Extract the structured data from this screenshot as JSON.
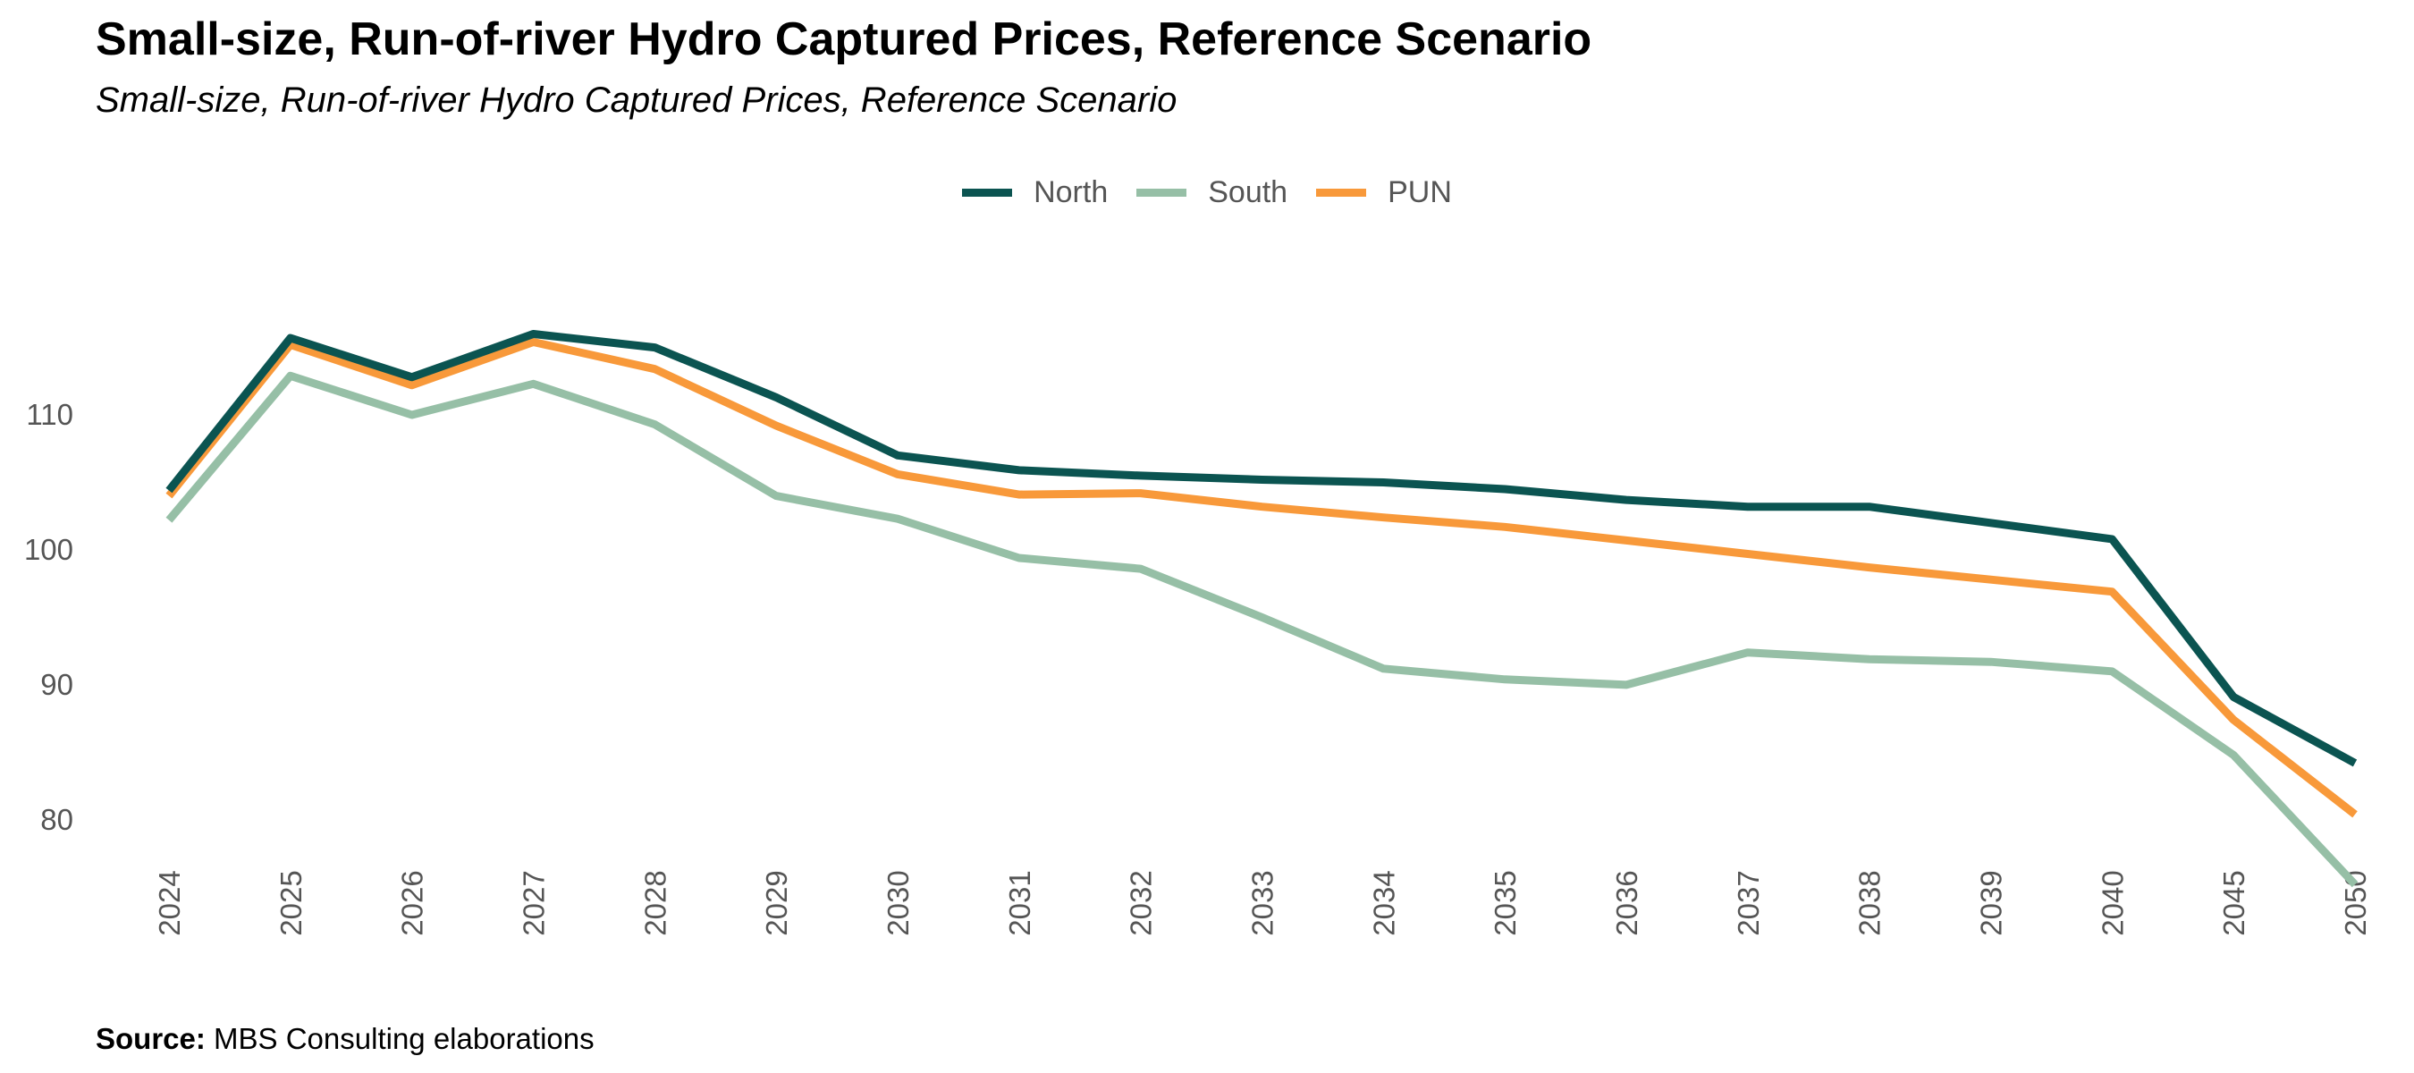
{
  "title": "Small-size, Run-of-river Hydro Captured Prices, Reference Scenario",
  "subtitle": "Small-size, Run-of-river Hydro Captured Prices, Reference Scenario",
  "source": {
    "label": "Source:",
    "text": " MBS Consulting elaborations"
  },
  "chart_data": {
    "type": "line",
    "title": "Small-size, Run-of-river Hydro Captured Prices, Reference Scenario",
    "subtitle": "Small-size, Run-of-river Hydro Captured Prices, Reference Scenario",
    "xlabel": "",
    "ylabel": "",
    "categories": [
      "2024",
      "2025",
      "2026",
      "2027",
      "2028",
      "2029",
      "2030",
      "2031",
      "2032",
      "2033",
      "2034",
      "2035",
      "2036",
      "2037",
      "2038",
      "2039",
      "2040",
      "2045",
      "2050"
    ],
    "yticks": [
      80,
      90,
      100,
      110
    ],
    "ylim": [
      72.5,
      121
    ],
    "grid": false,
    "legend": "top-center",
    "series": [
      {
        "name": "North",
        "color": "#0b5451",
        "values": [
          104.4,
          115.7,
          112.8,
          116.0,
          115.0,
          111.3,
          107.0,
          105.9,
          105.5,
          105.2,
          105.0,
          104.5,
          103.7,
          103.2,
          103.2,
          102.0,
          100.8,
          89.1,
          84.2
        ]
      },
      {
        "name": "South",
        "color": "#96bfa6",
        "values": [
          102.2,
          112.9,
          110.0,
          112.3,
          109.3,
          104.0,
          102.3,
          99.4,
          98.6,
          95.0,
          91.2,
          90.4,
          90.0,
          92.4,
          91.9,
          91.7,
          91.0,
          84.8,
          75.2
        ]
      },
      {
        "name": "PUN",
        "color": "#f8993a",
        "values": [
          104.0,
          115.2,
          112.2,
          115.4,
          113.4,
          109.2,
          105.6,
          104.1,
          104.2,
          103.2,
          102.4,
          101.7,
          100.7,
          99.7,
          98.7,
          97.8,
          96.9,
          87.4,
          80.4
        ]
      }
    ]
  }
}
